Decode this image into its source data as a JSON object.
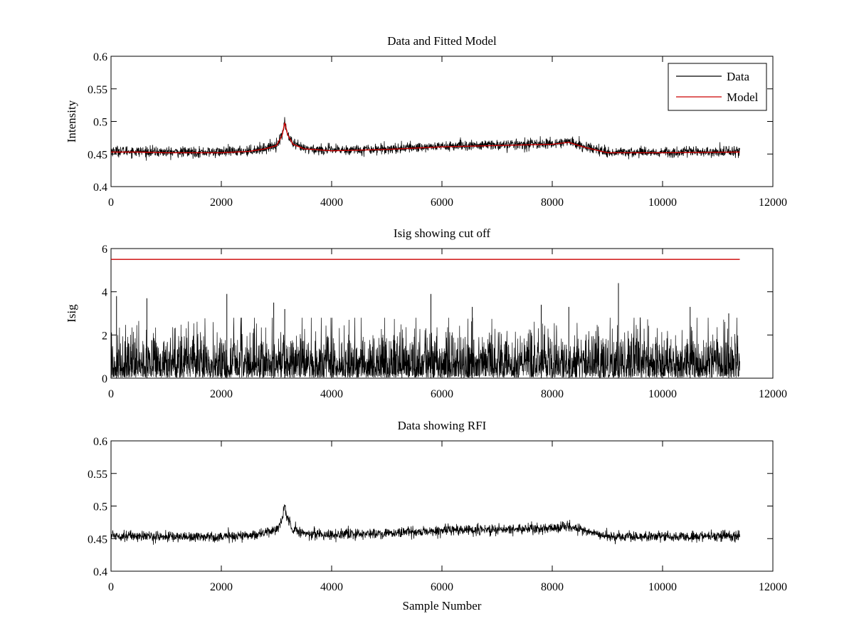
{
  "figure": {
    "background": "#ffffff",
    "colors": {
      "data": "#000000",
      "model": "#cc0000",
      "axes": "#000000"
    }
  },
  "chart_data": [
    {
      "type": "line",
      "title": "Data and Fitted Model",
      "xlabel": "",
      "ylabel": "Intensity",
      "xlim": [
        0,
        12000
      ],
      "ylim": [
        0.4,
        0.6
      ],
      "xticks": [
        0,
        2000,
        4000,
        6000,
        8000,
        10000,
        12000
      ],
      "yticks": [
        0.4,
        0.45,
        0.5,
        0.55,
        0.6
      ],
      "xtick_labels": [
        "0",
        "2000",
        "4000",
        "6000",
        "8000",
        "10000",
        "12000"
      ],
      "ytick_labels": [
        "0.4",
        "0.45",
        "0.5",
        "0.55",
        "0.6"
      ],
      "grid": false,
      "legend": {
        "position": "top-right",
        "entries": [
          "Data",
          "Model"
        ]
      },
      "series": [
        {
          "name": "Data",
          "color": "#000000",
          "style": "noisy",
          "noise_amplitude": 0.004,
          "x": [
            0,
            500,
            1000,
            1500,
            2000,
            2500,
            2800,
            3000,
            3100,
            3150,
            3200,
            3300,
            3500,
            4000,
            5000,
            6000,
            7000,
            8000,
            8300,
            8600,
            9000,
            10000,
            11400
          ],
          "y": [
            0.455,
            0.454,
            0.453,
            0.453,
            0.453,
            0.455,
            0.459,
            0.464,
            0.478,
            0.5,
            0.48,
            0.465,
            0.458,
            0.456,
            0.458,
            0.462,
            0.464,
            0.466,
            0.469,
            0.461,
            0.453,
            0.453,
            0.454
          ]
        },
        {
          "name": "Model",
          "color": "#cc0000",
          "style": "smooth",
          "x": [
            0,
            500,
            1000,
            1500,
            2000,
            2500,
            2800,
            3000,
            3100,
            3150,
            3200,
            3300,
            3500,
            4000,
            5000,
            6000,
            7000,
            8000,
            8300,
            8600,
            9000,
            10000,
            11400
          ],
          "y": [
            0.453,
            0.453,
            0.452,
            0.452,
            0.452,
            0.454,
            0.458,
            0.463,
            0.478,
            0.498,
            0.48,
            0.465,
            0.458,
            0.455,
            0.457,
            0.461,
            0.463,
            0.465,
            0.468,
            0.46,
            0.452,
            0.452,
            0.453
          ]
        }
      ]
    },
    {
      "type": "line",
      "title": "Isig showing cut off",
      "xlabel": "",
      "ylabel": "Isig",
      "xlim": [
        0,
        12000
      ],
      "ylim": [
        0,
        6
      ],
      "xticks": [
        0,
        2000,
        4000,
        6000,
        8000,
        10000,
        12000
      ],
      "yticks": [
        0,
        2,
        4,
        6
      ],
      "xtick_labels": [
        "0",
        "2000",
        "4000",
        "6000",
        "8000",
        "10000",
        "12000"
      ],
      "ytick_labels": [
        "0",
        "2",
        "4",
        "6"
      ],
      "grid": false,
      "series": [
        {
          "color": "#000000",
          "style": "spiky",
          "baseline": 0,
          "typical_peak": 2.5,
          "x": [
            0,
            11400
          ],
          "peaks": [
            {
              "x": 100,
              "y": 3.8
            },
            {
              "x": 650,
              "y": 3.7
            },
            {
              "x": 2100,
              "y": 3.9
            },
            {
              "x": 2950,
              "y": 3.5
            },
            {
              "x": 3150,
              "y": 3.2
            },
            {
              "x": 5800,
              "y": 3.9
            },
            {
              "x": 6550,
              "y": 3.3
            },
            {
              "x": 7800,
              "y": 3.4
            },
            {
              "x": 8300,
              "y": 3.3
            },
            {
              "x": 9200,
              "y": 4.4
            },
            {
              "x": 10500,
              "y": 3.3
            },
            {
              "x": 11200,
              "y": 3.0
            }
          ]
        },
        {
          "color": "#cc0000",
          "style": "flat",
          "x": [
            0,
            11400
          ],
          "y": [
            5.5,
            5.5
          ]
        }
      ]
    },
    {
      "type": "line",
      "title": "Data showing RFI",
      "xlabel": "Sample Number",
      "ylabel": "",
      "xlim": [
        0,
        12000
      ],
      "ylim": [
        0.4,
        0.6
      ],
      "xticks": [
        0,
        2000,
        4000,
        6000,
        8000,
        10000,
        12000
      ],
      "yticks": [
        0.4,
        0.45,
        0.5,
        0.55,
        0.6
      ],
      "xtick_labels": [
        "0",
        "2000",
        "4000",
        "6000",
        "8000",
        "10000",
        "12000"
      ],
      "ytick_labels": [
        "0.4",
        "0.45",
        "0.5",
        "0.55",
        "0.6"
      ],
      "grid": false,
      "series": [
        {
          "color": "#000000",
          "style": "noisy",
          "noise_amplitude": 0.004,
          "x": [
            0,
            500,
            1000,
            1500,
            2000,
            2500,
            2800,
            3000,
            3100,
            3150,
            3200,
            3300,
            3500,
            4000,
            5000,
            6000,
            7000,
            8000,
            8300,
            8600,
            9000,
            10000,
            11400
          ],
          "y": [
            0.455,
            0.454,
            0.453,
            0.453,
            0.453,
            0.455,
            0.459,
            0.464,
            0.478,
            0.5,
            0.48,
            0.465,
            0.458,
            0.456,
            0.458,
            0.462,
            0.464,
            0.466,
            0.469,
            0.461,
            0.453,
            0.453,
            0.454
          ]
        }
      ]
    }
  ]
}
